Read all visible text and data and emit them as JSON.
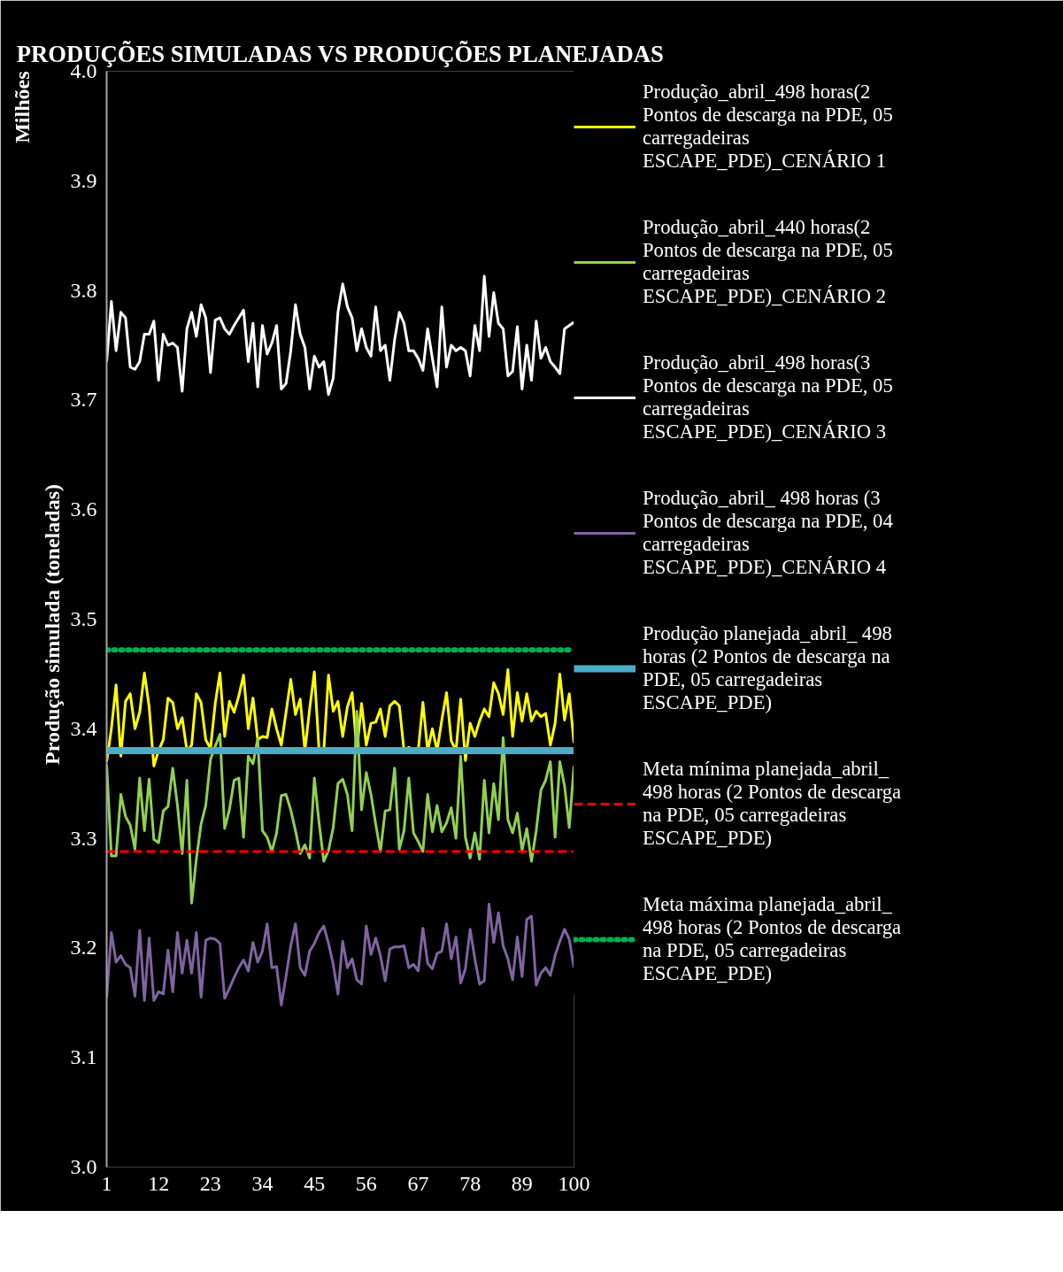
{
  "chart_data": {
    "type": "line",
    "title": "PRODUÇÕES SIMULADAS VS PRODUÇÕES PLANEJADAS",
    "ylabel": "Produção  simulada  (toneladas)",
    "annotations": [
      "Milhões"
    ],
    "xlim": [
      1,
      100
    ],
    "xticks": [
      1,
      12,
      23,
      34,
      45,
      56,
      67,
      78,
      89,
      100
    ],
    "ylim": [
      3,
      4
    ],
    "yticks": [
      {
        "value": 3,
        "label": "3.0"
      },
      {
        "value": 3.1,
        "label": "3.1"
      },
      {
        "value": 3.2,
        "label": "3.2"
      },
      {
        "value": 3.3,
        "label": "3.3"
      },
      {
        "value": 3.4,
        "label": "3.4"
      },
      {
        "value": 3.5,
        "label": "3.5"
      },
      {
        "value": 3.6,
        "label": "3.6"
      },
      {
        "value": 3.7,
        "label": "3.7"
      },
      {
        "value": 3.8,
        "label": "3.8"
      },
      {
        "value": 3.9,
        "label": "3.9"
      },
      {
        "value": 4,
        "label": "4.0"
      }
    ],
    "x": [
      1,
      2,
      3,
      4,
      5,
      6,
      7,
      8,
      9,
      10,
      11,
      12,
      13,
      14,
      15,
      16,
      17,
      18,
      19,
      20,
      21,
      22,
      23,
      24,
      25,
      26,
      27,
      28,
      29,
      30,
      31,
      32,
      33,
      34,
      35,
      36,
      37,
      38,
      39,
      40,
      41,
      42,
      43,
      44,
      45,
      46,
      47,
      48,
      49,
      50,
      51,
      52,
      53,
      54,
      55,
      56,
      57,
      58,
      59,
      60,
      61,
      62,
      63,
      64,
      65,
      66,
      67,
      68,
      69,
      70,
      71,
      72,
      73,
      74,
      75,
      76,
      77,
      78,
      79,
      80,
      81,
      82,
      83,
      84,
      85,
      86,
      87,
      88,
      89,
      90,
      91,
      92,
      93,
      94,
      95,
      96,
      97,
      98,
      99,
      100
    ],
    "grid": false,
    "legend": "right",
    "marker": "none",
    "line_style": "solid",
    "series": [
      {
        "name": "Produção_abril_498 horas(2 Pontos de descarga na PDE, 05 carregadeiras ESCAPE_PDE)_CENÁRIO 1",
        "color": "#ffff00",
        "values": [
          3.37,
          3.4,
          3.44,
          3.375,
          3.425,
          3.432,
          3.4,
          3.415,
          3.451,
          3.42,
          3.366,
          3.38,
          3.39,
          3.428,
          3.424,
          3.4,
          3.41,
          3.38,
          3.385,
          3.432,
          3.424,
          3.39,
          3.382,
          3.423,
          3.451,
          3.393,
          3.425,
          3.415,
          3.43,
          3.449,
          3.4,
          3.428,
          3.39,
          3.393,
          3.392,
          3.418,
          3.4,
          3.385,
          3.415,
          3.445,
          3.413,
          3.427,
          3.38,
          3.418,
          3.452,
          3.38,
          3.38,
          3.449,
          3.416,
          3.425,
          3.393,
          3.42,
          3.433,
          3.38,
          3.423,
          3.385,
          3.405,
          3.406,
          3.418,
          3.393,
          3.421,
          3.425,
          3.421,
          3.38,
          3.383,
          3.38,
          3.38,
          3.424,
          3.38,
          3.4,
          3.38,
          3.408,
          3.433,
          3.389,
          3.38,
          3.427,
          3.371,
          3.405,
          3.393,
          3.407,
          3.418,
          3.411,
          3.442,
          3.432,
          3.413,
          3.454,
          3.393,
          3.433,
          3.407,
          3.432,
          3.407,
          3.416,
          3.411,
          3.414,
          3.385,
          3.405,
          3.45,
          3.408,
          3.432,
          3.387
        ]
      },
      {
        "name": "Produção_abril_440 horas(2 Pontos de descarga na PDE, 05 carregadeiras ESCAPE_PDE)_CENÁRIO 2",
        "color": "#92d050",
        "values": [
          3.367,
          3.284,
          3.284,
          3.34,
          3.32,
          3.312,
          3.29,
          3.355,
          3.307,
          3.354,
          3.299,
          3.296,
          3.325,
          3.329,
          3.364,
          3.33,
          3.286,
          3.353,
          3.241,
          3.281,
          3.313,
          3.33,
          3.372,
          3.384,
          3.395,
          3.309,
          3.326,
          3.353,
          3.355,
          3.301,
          3.375,
          3.368,
          3.391,
          3.307,
          3.301,
          3.288,
          3.305,
          3.339,
          3.34,
          3.326,
          3.307,
          3.286,
          3.294,
          3.282,
          3.355,
          3.314,
          3.279,
          3.289,
          3.31,
          3.35,
          3.354,
          3.34,
          3.307,
          3.416,
          3.326,
          3.36,
          3.34,
          3.313,
          3.288,
          3.325,
          3.326,
          3.364,
          3.29,
          3.307,
          3.355,
          3.305,
          3.297,
          3.288,
          3.34,
          3.306,
          3.33,
          3.306,
          3.314,
          3.328,
          3.3,
          3.375,
          3.301,
          3.282,
          3.305,
          3.281,
          3.353,
          3.305,
          3.35,
          3.317,
          3.392,
          3.317,
          3.305,
          3.323,
          3.289,
          3.309,
          3.279,
          3.307,
          3.344,
          3.353,
          3.37,
          3.301,
          3.37,
          3.348,
          3.31,
          3.366
        ]
      },
      {
        "name": "Produção_abril_498 horas(3 Pontos de descarga na PDE, 05 carregadeiras ESCAPE_PDE)_CENÁRIO 3",
        "color": "#ffffff",
        "values": [
          3.735,
          3.79,
          3.745,
          3.78,
          3.775,
          3.73,
          3.728,
          3.735,
          3.76,
          3.76,
          3.772,
          3.718,
          3.76,
          3.75,
          3.752,
          3.748,
          3.708,
          3.765,
          3.78,
          3.758,
          3.787,
          3.775,
          3.725,
          3.773,
          3.775,
          3.765,
          3.76,
          3.768,
          3.775,
          3.782,
          3.735,
          3.77,
          3.712,
          3.768,
          3.742,
          3.752,
          3.768,
          3.71,
          3.715,
          3.745,
          3.787,
          3.76,
          3.748,
          3.71,
          3.74,
          3.73,
          3.735,
          3.705,
          3.72,
          3.78,
          3.806,
          3.785,
          3.775,
          3.745,
          3.765,
          3.748,
          3.74,
          3.785,
          3.745,
          3.75,
          3.718,
          3.755,
          3.78,
          3.77,
          3.745,
          3.745,
          3.738,
          3.727,
          3.765,
          3.738,
          3.712,
          3.785,
          3.73,
          3.75,
          3.745,
          3.748,
          3.745,
          3.722,
          3.768,
          3.745,
          3.813,
          3.758,
          3.798,
          3.77,
          3.765,
          3.722,
          3.726,
          3.767,
          3.71,
          3.75,
          3.718,
          3.772,
          3.738,
          3.748,
          3.735,
          3.73,
          3.724,
          3.765,
          3.768,
          3.771
        ]
      },
      {
        "name": "Produção_abril_ 498 horas (3 Pontos de descarga na PDE, 04 carregadeiras ESCAPE_PDE)_CENÁRIO 4",
        "color": "#8064a2",
        "values": [
          3.155,
          3.214,
          3.187,
          3.193,
          3.185,
          3.182,
          3.156,
          3.216,
          3.152,
          3.209,
          3.152,
          3.16,
          3.158,
          3.198,
          3.16,
          3.214,
          3.177,
          3.207,
          3.177,
          3.214,
          3.155,
          3.207,
          3.209,
          3.208,
          3.204,
          3.154,
          3.163,
          3.173,
          3.182,
          3.189,
          3.179,
          3.205,
          3.187,
          3.197,
          3.222,
          3.182,
          3.183,
          3.148,
          3.174,
          3.202,
          3.222,
          3.182,
          3.175,
          3.197,
          3.204,
          3.214,
          3.22,
          3.204,
          3.185,
          3.158,
          3.206,
          3.182,
          3.19,
          3.171,
          3.167,
          3.22,
          3.194,
          3.209,
          3.193,
          3.17,
          3.199,
          3.201,
          3.201,
          3.202,
          3.182,
          3.185,
          3.179,
          3.218,
          3.186,
          3.181,
          3.195,
          3.197,
          3.222,
          3.19,
          3.21,
          3.168,
          3.181,
          3.217,
          3.19,
          3.167,
          3.17,
          3.24,
          3.205,
          3.232,
          3.202,
          3.19,
          3.171,
          3.21,
          3.174,
          3.226,
          3.229,
          3.166,
          3.177,
          3.182,
          3.175,
          3.193,
          3.206,
          3.217,
          3.208,
          3.182
        ]
      }
    ],
    "ref_lines": [
      {
        "axis": "y",
        "value": 3.38,
        "label": "Produção planejada_abril_ 498 horas (2 Pontos de descarga na PDE, 05 carregadeiras ESCAPE_PDE)",
        "color": "#4bacc6",
        "line_style": "solid"
      },
      {
        "axis": "y",
        "value": 3.288,
        "label": "Meta mínima planejada_abril_ 498 horas (2 Pontos de descarga na PDE, 05 carregadeiras ESCAPE_PDE)",
        "color": "#ff0000",
        "line_style": "dashed"
      },
      {
        "axis": "y",
        "value": 3.472,
        "label": "Meta máxima planejada_abril_ 498 horas (2 Pontos de descarga na PDE, 05 carregadeiras ESCAPE_PDE)",
        "color": "#00b050",
        "line_style": "dotted"
      }
    ]
  }
}
